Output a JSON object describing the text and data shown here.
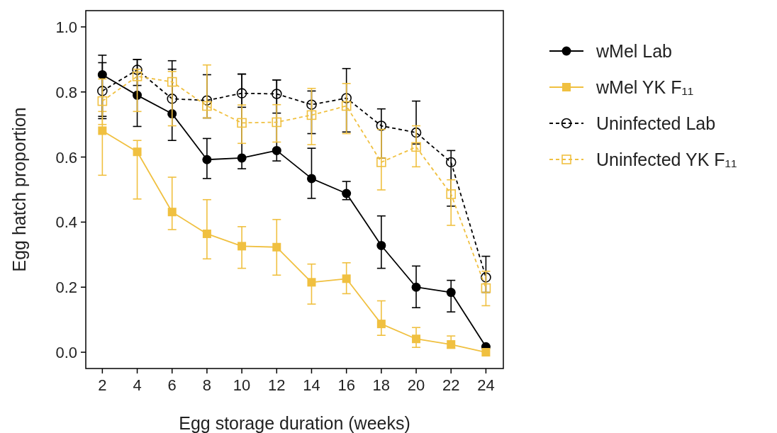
{
  "chart_data": {
    "type": "line",
    "xlabel": "Egg storage duration (weeks)",
    "ylabel": "Egg hatch proportion",
    "x": [
      2,
      4,
      6,
      8,
      10,
      12,
      14,
      16,
      18,
      20,
      22,
      24
    ],
    "xlim": [
      1.05,
      25
    ],
    "xticks": [
      2,
      4,
      6,
      8,
      10,
      12,
      14,
      16,
      18,
      20,
      22,
      24
    ],
    "ylim": [
      -0.05,
      1.05
    ],
    "yticks": [
      {
        "value": 0,
        "label": "0.0"
      },
      {
        "value": 0.2,
        "label": "0.2"
      },
      {
        "value": 0.4,
        "label": "0.4"
      },
      {
        "value": 0.6,
        "label": "0.6"
      },
      {
        "value": 0.8,
        "label": "0.8"
      },
      {
        "value": 1,
        "label": "1.0"
      }
    ],
    "grid": false,
    "legend": "right",
    "series": [
      {
        "name": "wMel Lab",
        "color": "#000000",
        "marker": "circle",
        "line_style": "solid",
        "values": [
          0.853,
          0.79,
          0.733,
          0.592,
          0.597,
          0.62,
          0.534,
          0.488,
          0.328,
          0.2,
          0.184,
          0.017
        ],
        "errors": [
          [
            0.718,
            0.913
          ],
          [
            0.694,
            0.9
          ],
          [
            0.651,
            0.896
          ],
          [
            0.534,
            0.657
          ],
          [
            0.564,
            0.855
          ],
          [
            0.588,
            0.837
          ],
          [
            0.473,
            0.627
          ],
          [
            0.469,
            0.525
          ],
          [
            0.258,
            0.419
          ],
          [
            0.137,
            0.265
          ],
          [
            0.124,
            0.221
          ],
          null
        ]
      },
      {
        "name": "wMel YK F₁₁",
        "color": "#f0c040",
        "marker": "square",
        "line_style": "solid",
        "values": [
          0.681,
          0.616,
          0.431,
          0.364,
          0.326,
          0.323,
          0.215,
          0.226,
          0.087,
          0.041,
          0.024,
          0.0
        ],
        "errors": [
          [
            0.544,
            0.74
          ],
          [
            0.471,
            0.651
          ],
          [
            0.377,
            0.538
          ],
          [
            0.287,
            0.469
          ],
          [
            0.258,
            0.386
          ],
          [
            0.237,
            0.408
          ],
          [
            0.148,
            0.271
          ],
          [
            0.18,
            0.275
          ],
          [
            0.052,
            0.158
          ],
          [
            0.015,
            0.076
          ],
          [
            0.012,
            0.05
          ],
          null
        ]
      },
      {
        "name": "Uninfected Lab",
        "color": "#000000",
        "marker": "circle",
        "line_style": "dashed",
        "values": [
          0.803,
          0.868,
          0.779,
          0.774,
          0.796,
          0.794,
          0.761,
          0.781,
          0.696,
          0.675,
          0.584,
          0.23
        ],
        "errors": [
          [
            0.725,
            0.89
          ],
          [
            0.82,
            0.9
          ],
          [
            0.73,
            0.87
          ],
          [
            0.72,
            0.853
          ],
          [
            0.753,
            0.855
          ],
          [
            0.735,
            0.837
          ],
          [
            0.672,
            0.803
          ],
          [
            0.677,
            0.872
          ],
          [
            0.597,
            0.748
          ],
          [
            0.64,
            0.772
          ],
          [
            0.449,
            0.62
          ],
          [
            0.184,
            0.295
          ]
        ]
      },
      {
        "name": "Uninfected YK F₁₁",
        "color": "#f0c040",
        "marker": "square",
        "line_style": "dashed",
        "values": [
          0.772,
          0.848,
          0.831,
          0.757,
          0.705,
          0.707,
          0.729,
          0.757,
          0.584,
          0.631,
          0.486,
          0.197
        ],
        "errors": [
          [
            0.7,
            0.84
          ],
          [
            0.74,
            0.87
          ],
          [
            0.696,
            0.863
          ],
          [
            0.72,
            0.883
          ],
          [
            0.642,
            0.76
          ],
          [
            0.646,
            0.761
          ],
          [
            0.638,
            0.811
          ],
          [
            0.672,
            0.826
          ],
          [
            0.499,
            0.685
          ],
          [
            0.57,
            0.696
          ],
          [
            0.39,
            0.53
          ],
          [
            0.143,
            0.249
          ]
        ]
      }
    ]
  }
}
